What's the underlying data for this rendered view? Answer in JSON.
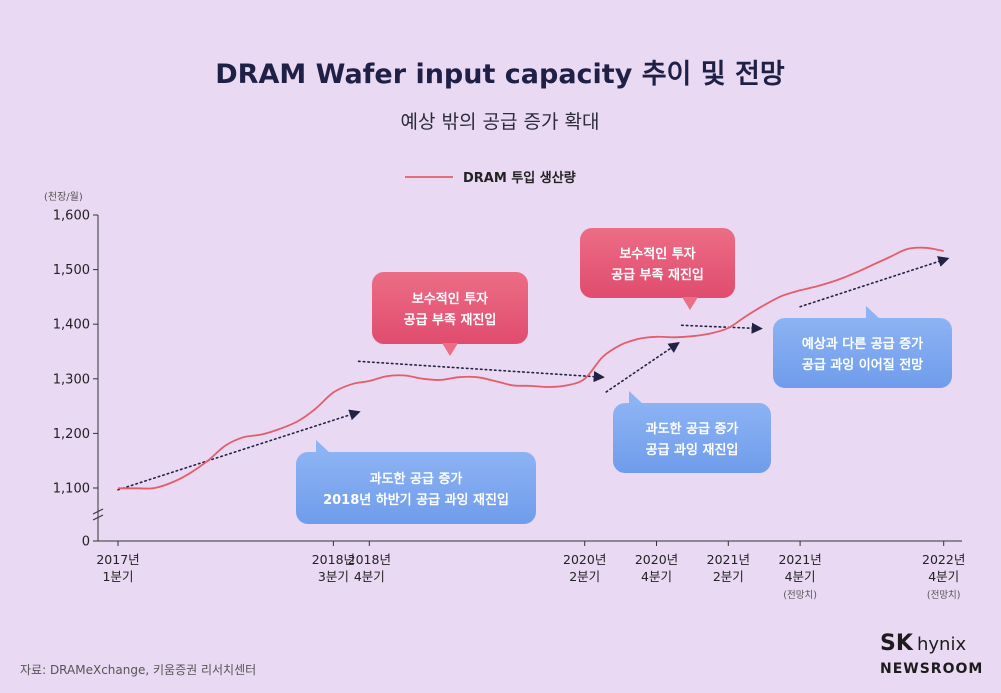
{
  "chart_data": {
    "type": "line",
    "title": "DRAM Wafer input capacity 추이 및 전망",
    "subtitle": "예상 밖의 공급 증가 확대",
    "ylabel": "(천장/월)",
    "ylim": [
      0,
      1600
    ],
    "yticks": [
      0,
      1100,
      1200,
      1300,
      1400,
      1500,
      1600
    ],
    "ytick_labels": [
      "0",
      "1,100",
      "1,200",
      "1,300",
      "1,400",
      "1,500",
      "1,600"
    ],
    "xticks": [
      {
        "t": 0,
        "line1": "2017년",
        "line2": "1분기",
        "note": ""
      },
      {
        "t": 6,
        "line1": "2018년",
        "line2": "3분기",
        "note": ""
      },
      {
        "t": 7,
        "line1": "2018년",
        "line2": "4분기",
        "note": ""
      },
      {
        "t": 13,
        "line1": "2020년",
        "line2": "2분기",
        "note": ""
      },
      {
        "t": 15,
        "line1": "2020년",
        "line2": "4분기",
        "note": ""
      },
      {
        "t": 17,
        "line1": "2021년",
        "line2": "2분기",
        "note": ""
      },
      {
        "t": 19,
        "line1": "2021년",
        "line2": "4분기",
        "note": "(전망치)"
      },
      {
        "t": 23,
        "line1": "2022년",
        "line2": "4분기",
        "note": "(전망치)"
      }
    ],
    "series": [
      {
        "name": "DRAM 투입 생산량",
        "color": "#e35d6a",
        "x": [
          0,
          0.5,
          1,
          1.5,
          2,
          2.5,
          3,
          3.5,
          4,
          4.5,
          5,
          5.5,
          6,
          6.5,
          7,
          7.5,
          8,
          8.5,
          9,
          9.5,
          10,
          10.5,
          11,
          11.5,
          12,
          12.5,
          13,
          13.5,
          14,
          14.5,
          15,
          15.5,
          16,
          16.5,
          17,
          17.5,
          18,
          18.5,
          19,
          19.5,
          20,
          20.5,
          21,
          21.5,
          22,
          22.5,
          23
        ],
        "values": [
          1093,
          1094,
          1098,
          1110,
          1127,
          1150,
          1178,
          1193,
          1198,
          1208,
          1222,
          1245,
          1275,
          1290,
          1296,
          1305,
          1306,
          1300,
          1298,
          1303,
          1303,
          1296,
          1288,
          1287,
          1285,
          1288,
          1300,
          1340,
          1362,
          1373,
          1377,
          1376,
          1378,
          1383,
          1393,
          1415,
          1435,
          1452,
          1462,
          1470,
          1480,
          1493,
          1508,
          1523,
          1538,
          1540,
          1534
        ]
      }
    ],
    "annotations": [
      {
        "kind": "trend-arrow",
        "from": [
          0,
          1063
        ],
        "to": [
          6.7,
          1239
        ]
      },
      {
        "kind": "trend-arrow",
        "from": [
          6.7,
          1332
        ],
        "to": [
          13.5,
          1303
        ]
      },
      {
        "kind": "trend-arrow",
        "from": [
          13.6,
          1276
        ],
        "to": [
          15.6,
          1365
        ]
      },
      {
        "kind": "trend-arrow",
        "from": [
          15.7,
          1398
        ],
        "to": [
          17.9,
          1392
        ]
      },
      {
        "kind": "trend-arrow",
        "from": [
          19.0,
          1432
        ],
        "to": [
          23.1,
          1520
        ]
      }
    ],
    "callouts": [
      {
        "color": "pink",
        "lines": [
          "보수적인 투자",
          "공급 부족 재진입"
        ]
      },
      {
        "color": "blue",
        "lines": [
          "과도한 공급 증가",
          "2018년 하반기 공급 과잉 재진입"
        ]
      },
      {
        "color": "pink",
        "lines": [
          "보수적인 투자",
          "공급 부족 재진입"
        ]
      },
      {
        "color": "blue",
        "lines": [
          "과도한 공급 증가",
          "공급 과잉 재진입"
        ]
      },
      {
        "color": "blue",
        "lines": [
          "예상과 다른 공급 증가",
          "공급 과잉 이어질 전망"
        ]
      }
    ]
  },
  "colors": {
    "background": "#ead9f2",
    "line": "#e35d6a",
    "pink_box": "#e45a76",
    "blue_box": "#7aa6ee",
    "arrow": "#222244"
  },
  "footer": {
    "source": "자료: DRAMeXchange, 키움증권 리서치센터",
    "brand_sk": "SK",
    "brand_hynix": "hynix",
    "brand_newsroom": "NEWSROOM"
  }
}
